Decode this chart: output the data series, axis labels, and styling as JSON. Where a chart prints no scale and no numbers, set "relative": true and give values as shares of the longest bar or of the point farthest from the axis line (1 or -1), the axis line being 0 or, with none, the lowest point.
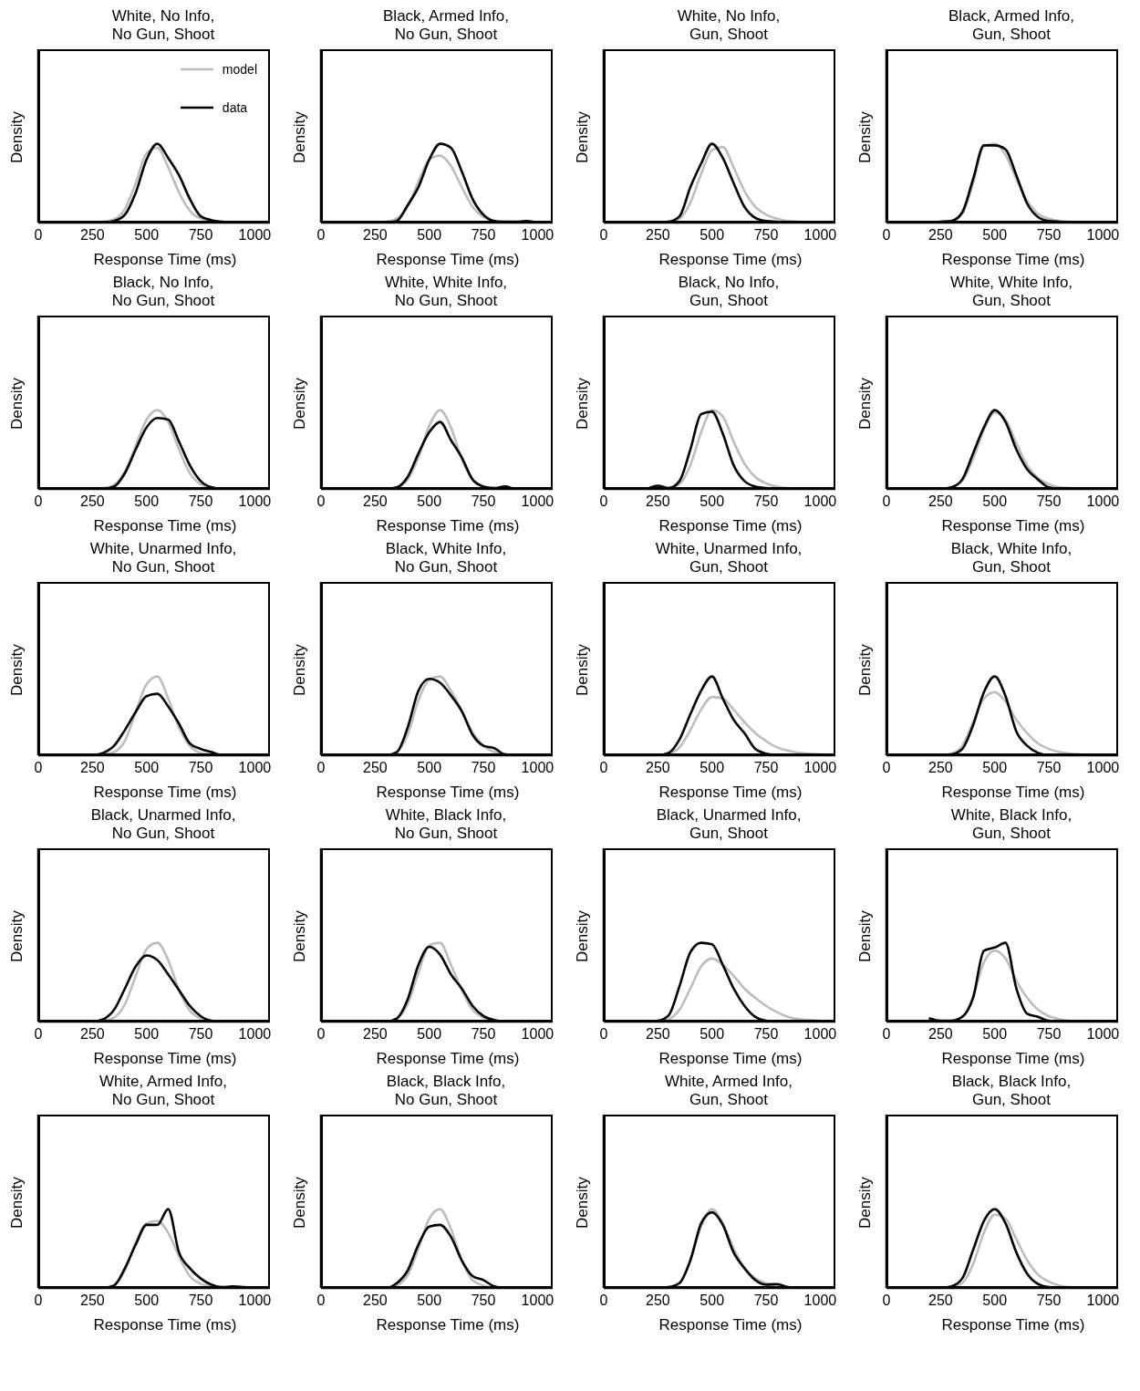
{
  "chart_data": [
    {
      "type": "line",
      "title": "White, No Info,\nNo Gun, Shoot",
      "xlabel": "Response Time (ms)",
      "ylabel": "Density",
      "relative": true,
      "xlim": [
        0,
        1070
      ],
      "xticks": [
        0,
        250,
        500,
        750,
        1000
      ],
      "legend": "top right",
      "x": [
        200,
        250,
        300,
        350,
        400,
        450,
        500,
        550,
        600,
        650,
        700,
        750,
        800,
        850,
        900,
        950,
        1000
      ],
      "series": [
        {
          "name": "model",
          "color": "#bdbdbd",
          "values": [
            0,
            0,
            0.01,
            0.04,
            0.17,
            0.5,
            0.88,
            0.95,
            0.7,
            0.38,
            0.15,
            0.05,
            0.02,
            0.01,
            0,
            0,
            0
          ]
        },
        {
          "name": "data",
          "color": "#000000",
          "values": [
            0,
            0,
            0,
            0.02,
            0.1,
            0.38,
            0.8,
            1,
            0.82,
            0.6,
            0.3,
            0.08,
            0.03,
            0.01,
            0,
            0,
            0
          ]
        }
      ]
    },
    {
      "type": "line",
      "title": "Black, Armed Info,\nNo Gun, Shoot",
      "xlabel": "Response Time (ms)",
      "ylabel": "Density",
      "relative": true,
      "xlim": [
        0,
        1070
      ],
      "xticks": [
        0,
        250,
        500,
        750,
        1000
      ],
      "x": [
        200,
        250,
        300,
        350,
        400,
        450,
        500,
        550,
        600,
        650,
        700,
        750,
        800,
        850,
        900,
        950,
        1000
      ],
      "series": [
        {
          "color": "#bdbdbd",
          "values": [
            0,
            0,
            0.01,
            0.05,
            0.2,
            0.52,
            0.8,
            0.85,
            0.72,
            0.45,
            0.2,
            0.07,
            0.02,
            0.01,
            0,
            0,
            0
          ]
        },
        {
          "color": "#000000",
          "values": [
            0,
            0,
            0,
            0.02,
            0.22,
            0.45,
            0.8,
            1,
            0.95,
            0.65,
            0.3,
            0.1,
            0.02,
            0.01,
            0.01,
            0.02,
            0
          ]
        }
      ]
    },
    {
      "type": "line",
      "title": "White, No Info,\nGun, Shoot",
      "xlabel": "Response Time (ms)",
      "ylabel": "Density",
      "relative": true,
      "xlim": [
        0,
        1070
      ],
      "xticks": [
        0,
        250,
        500,
        750,
        1000
      ],
      "x": [
        200,
        250,
        300,
        350,
        400,
        450,
        500,
        550,
        600,
        650,
        700,
        750,
        800,
        850,
        900,
        950,
        1000
      ],
      "series": [
        {
          "color": "#bdbdbd",
          "values": [
            0,
            0,
            0.01,
            0.05,
            0.25,
            0.62,
            0.92,
            0.96,
            0.7,
            0.4,
            0.2,
            0.1,
            0.05,
            0.02,
            0.01,
            0,
            0
          ]
        },
        {
          "color": "#000000",
          "values": [
            0,
            0,
            0.01,
            0.08,
            0.45,
            0.75,
            1,
            0.82,
            0.5,
            0.2,
            0.06,
            0.02,
            0.01,
            0,
            0,
            0,
            0
          ]
        }
      ]
    },
    {
      "type": "line",
      "title": "Black, Armed Info,\nGun, Shoot",
      "xlabel": "Response Time (ms)",
      "ylabel": "Density",
      "relative": true,
      "xlim": [
        0,
        1070
      ],
      "xticks": [
        0,
        250,
        500,
        750,
        1000
      ],
      "x": [
        200,
        250,
        300,
        350,
        400,
        450,
        500,
        550,
        600,
        650,
        700,
        750,
        800,
        850,
        900,
        950,
        1000
      ],
      "series": [
        {
          "color": "#bdbdbd",
          "values": [
            0,
            0,
            0.02,
            0.11,
            0.5,
            0.97,
            1,
            0.86,
            0.55,
            0.28,
            0.11,
            0.05,
            0.02,
            0.01,
            0,
            0,
            0
          ]
        },
        {
          "color": "#000000",
          "values": [
            0,
            0.01,
            0.02,
            0.13,
            0.55,
            0.98,
            0.98,
            0.93,
            0.6,
            0.24,
            0.07,
            0.02,
            0.01,
            0,
            0,
            0,
            0
          ]
        }
      ]
    },
    {
      "type": "line",
      "title": "Black, No Info,\nNo Gun, Shoot",
      "xlabel": "Response Time (ms)",
      "ylabel": "Density",
      "relative": true,
      "xlim": [
        0,
        1070
      ],
      "xticks": [
        0,
        250,
        500,
        750,
        1000
      ],
      "x": [
        200,
        250,
        300,
        350,
        400,
        450,
        500,
        550,
        600,
        650,
        700,
        750,
        800,
        850,
        900,
        950,
        1000
      ],
      "series": [
        {
          "color": "#bdbdbd",
          "values": [
            0,
            0,
            0.01,
            0.05,
            0.22,
            0.55,
            0.88,
            1,
            0.85,
            0.5,
            0.2,
            0.06,
            0.02,
            0,
            0,
            0,
            0
          ]
        },
        {
          "color": "#000000",
          "values": [
            0,
            0,
            0,
            0.03,
            0.2,
            0.5,
            0.78,
            0.9,
            0.88,
            0.6,
            0.3,
            0.1,
            0.02,
            0,
            0,
            0,
            0
          ]
        }
      ]
    },
    {
      "type": "line",
      "title": "White, White Info,\nNo Gun, Shoot",
      "xlabel": "Response Time (ms)",
      "ylabel": "Density",
      "relative": true,
      "xlim": [
        0,
        1070
      ],
      "xticks": [
        0,
        250,
        500,
        750,
        1000
      ],
      "x": [
        200,
        250,
        300,
        350,
        400,
        450,
        500,
        550,
        600,
        650,
        700,
        750,
        800,
        850,
        900,
        950,
        1000
      ],
      "series": [
        {
          "color": "#bdbdbd",
          "values": [
            0,
            0,
            0,
            0.02,
            0.12,
            0.4,
            0.8,
            1,
            0.78,
            0.38,
            0.12,
            0.03,
            0.01,
            0,
            0,
            0,
            0
          ]
        },
        {
          "color": "#000000",
          "values": [
            0,
            0,
            0,
            0.02,
            0.15,
            0.45,
            0.72,
            0.85,
            0.62,
            0.4,
            0.12,
            0.03,
            0.01,
            0.03,
            0,
            0,
            0
          ]
        }
      ]
    },
    {
      "type": "line",
      "title": "Black, No Info,\nGun, Shoot",
      "xlabel": "Response Time (ms)",
      "ylabel": "Density",
      "relative": true,
      "xlim": [
        0,
        1070
      ],
      "xticks": [
        0,
        250,
        500,
        750,
        1000
      ],
      "x": [
        200,
        250,
        300,
        350,
        400,
        450,
        500,
        550,
        600,
        650,
        700,
        750,
        800,
        850,
        900,
        950,
        1000
      ],
      "series": [
        {
          "color": "#bdbdbd",
          "values": [
            0,
            0,
            0.01,
            0.06,
            0.3,
            0.72,
            1,
            0.92,
            0.6,
            0.32,
            0.15,
            0.07,
            0.03,
            0.01,
            0,
            0,
            0
          ]
        },
        {
          "color": "#000000",
          "values": [
            0,
            0.04,
            0.01,
            0.1,
            0.5,
            0.95,
            0.98,
            0.7,
            0.3,
            0.1,
            0.03,
            0.01,
            0,
            0,
            0,
            0,
            0
          ]
        }
      ]
    },
    {
      "type": "line",
      "title": "White, White Info,\nGun, Shoot",
      "xlabel": "Response Time (ms)",
      "ylabel": "Density",
      "relative": true,
      "xlim": [
        0,
        1070
      ],
      "xticks": [
        0,
        250,
        500,
        750,
        1000
      ],
      "x": [
        200,
        250,
        300,
        350,
        400,
        450,
        500,
        550,
        600,
        650,
        700,
        750,
        800,
        850,
        900,
        950,
        1000
      ],
      "series": [
        {
          "color": "#bdbdbd",
          "values": [
            0,
            0,
            0.02,
            0.1,
            0.38,
            0.75,
            0.97,
            0.88,
            0.58,
            0.3,
            0.14,
            0.06,
            0.02,
            0.01,
            0,
            0,
            0
          ]
        },
        {
          "color": "#000000",
          "values": [
            0,
            0,
            0.02,
            0.12,
            0.45,
            0.78,
            1,
            0.85,
            0.5,
            0.25,
            0.12,
            0.02,
            0,
            0,
            0,
            0,
            0
          ]
        }
      ]
    },
    {
      "type": "line",
      "title": "White, Unarmed Info,\nNo Gun, Shoot",
      "xlabel": "Response Time (ms)",
      "ylabel": "Density",
      "relative": true,
      "xlim": [
        0,
        1070
      ],
      "xticks": [
        0,
        250,
        500,
        750,
        1000
      ],
      "x": [
        200,
        250,
        300,
        350,
        400,
        450,
        500,
        550,
        600,
        650,
        700,
        750,
        800,
        850,
        900,
        950,
        1000
      ],
      "series": [
        {
          "color": "#bdbdbd",
          "values": [
            0,
            0,
            0.01,
            0.04,
            0.18,
            0.55,
            0.9,
            1,
            0.72,
            0.35,
            0.12,
            0.03,
            0.01,
            0,
            0,
            0,
            0
          ]
        },
        {
          "color": "#000000",
          "values": [
            0,
            0,
            0.03,
            0.12,
            0.32,
            0.55,
            0.75,
            0.78,
            0.62,
            0.4,
            0.15,
            0.08,
            0.04,
            0,
            0,
            0,
            0
          ]
        }
      ]
    },
    {
      "type": "line",
      "title": "Black, White Info,\nNo Gun, Shoot",
      "xlabel": "Response Time (ms)",
      "ylabel": "Density",
      "relative": true,
      "xlim": [
        0,
        1070
      ],
      "xticks": [
        0,
        250,
        500,
        750,
        1000
      ],
      "x": [
        200,
        250,
        300,
        350,
        400,
        450,
        500,
        550,
        600,
        650,
        700,
        750,
        800,
        850,
        900,
        950,
        1000
      ],
      "series": [
        {
          "color": "#bdbdbd",
          "values": [
            0,
            0,
            0,
            0.04,
            0.26,
            0.7,
            0.96,
            1,
            0.82,
            0.56,
            0.29,
            0.12,
            0.04,
            0.01,
            0,
            0,
            0
          ]
        },
        {
          "color": "#000000",
          "values": [
            0,
            0,
            0,
            0.04,
            0.35,
            0.82,
            0.97,
            0.92,
            0.76,
            0.56,
            0.26,
            0.12,
            0.09,
            0.01,
            0,
            0,
            0
          ]
        }
      ]
    },
    {
      "type": "line",
      "title": "White, Unarmed Info,\nGun, Shoot",
      "xlabel": "Response Time (ms)",
      "ylabel": "Density",
      "relative": true,
      "xlim": [
        0,
        1070
      ],
      "xticks": [
        0,
        250,
        500,
        750,
        1000
      ],
      "x": [
        200,
        250,
        300,
        350,
        400,
        450,
        500,
        550,
        600,
        650,
        700,
        750,
        800,
        850,
        900,
        950,
        1000
      ],
      "series": [
        {
          "color": "#bdbdbd",
          "values": [
            0,
            0,
            0.02,
            0.1,
            0.32,
            0.58,
            0.74,
            0.72,
            0.58,
            0.42,
            0.28,
            0.18,
            0.1,
            0.06,
            0.03,
            0.02,
            0.01
          ]
        },
        {
          "color": "#000000",
          "values": [
            0,
            0,
            0.03,
            0.2,
            0.52,
            0.82,
            1,
            0.72,
            0.45,
            0.28,
            0.08,
            0.02,
            0,
            0,
            0,
            0,
            0
          ]
        }
      ]
    },
    {
      "type": "line",
      "title": "Black, White Info,\nGun, Shoot",
      "xlabel": "Response Time (ms)",
      "ylabel": "Density",
      "relative": true,
      "xlim": [
        0,
        1070
      ],
      "xticks": [
        0,
        250,
        500,
        750,
        1000
      ],
      "x": [
        200,
        250,
        300,
        350,
        400,
        450,
        500,
        550,
        600,
        650,
        700,
        750,
        800,
        850,
        900,
        950,
        1000
      ],
      "series": [
        {
          "color": "#bdbdbd",
          "values": [
            0,
            0,
            0.02,
            0.12,
            0.42,
            0.72,
            0.8,
            0.68,
            0.45,
            0.28,
            0.15,
            0.08,
            0.04,
            0.02,
            0.01,
            0,
            0
          ]
        },
        {
          "color": "#000000",
          "values": [
            0,
            0,
            0.01,
            0.08,
            0.38,
            0.8,
            1,
            0.75,
            0.3,
            0.12,
            0.03,
            0,
            0,
            0,
            0,
            0,
            0
          ]
        }
      ]
    },
    {
      "type": "line",
      "title": "Black, Unarmed Info,\nNo Gun, Shoot",
      "xlabel": "Response Time (ms)",
      "ylabel": "Density",
      "relative": true,
      "xlim": [
        0,
        1070
      ],
      "xticks": [
        0,
        250,
        500,
        750,
        1000
      ],
      "x": [
        200,
        250,
        300,
        350,
        400,
        450,
        500,
        550,
        600,
        650,
        700,
        750,
        800,
        850,
        900,
        950,
        1000
      ],
      "series": [
        {
          "color": "#bdbdbd",
          "values": [
            0,
            0,
            0.01,
            0.05,
            0.22,
            0.58,
            0.92,
            1,
            0.78,
            0.4,
            0.14,
            0.04,
            0.01,
            0,
            0,
            0,
            0
          ]
        },
        {
          "color": "#000000",
          "values": [
            0,
            0,
            0.03,
            0.15,
            0.42,
            0.7,
            0.84,
            0.78,
            0.6,
            0.4,
            0.2,
            0.07,
            0.01,
            0,
            0,
            0,
            0
          ]
        }
      ]
    },
    {
      "type": "line",
      "title": "White, Black Info,\nNo Gun, Shoot",
      "xlabel": "Response Time (ms)",
      "ylabel": "Density",
      "relative": true,
      "xlim": [
        0,
        1070
      ],
      "xticks": [
        0,
        250,
        500,
        750,
        1000
      ],
      "x": [
        200,
        250,
        300,
        350,
        400,
        450,
        500,
        550,
        600,
        650,
        700,
        750,
        800,
        850,
        900,
        950,
        1000
      ],
      "series": [
        {
          "color": "#bdbdbd",
          "values": [
            0,
            0,
            0,
            0.04,
            0.22,
            0.62,
            0.97,
            1,
            0.72,
            0.4,
            0.15,
            0.05,
            0.01,
            0,
            0,
            0,
            0
          ]
        },
        {
          "color": "#000000",
          "values": [
            0,
            0,
            0,
            0.04,
            0.28,
            0.72,
            0.95,
            0.85,
            0.6,
            0.42,
            0.2,
            0.07,
            0.02,
            0,
            0,
            0,
            0
          ]
        }
      ]
    },
    {
      "type": "line",
      "title": "Black, Unarmed Info,\nGun, Shoot",
      "xlabel": "Response Time (ms)",
      "ylabel": "Density",
      "relative": true,
      "xlim": [
        0,
        1070
      ],
      "xticks": [
        0,
        250,
        500,
        750,
        1000
      ],
      "x": [
        200,
        250,
        300,
        350,
        400,
        450,
        500,
        550,
        600,
        650,
        700,
        750,
        800,
        850,
        900,
        950,
        1000
      ],
      "series": [
        {
          "color": "#bdbdbd",
          "values": [
            0,
            0,
            0.03,
            0.15,
            0.42,
            0.7,
            0.8,
            0.72,
            0.58,
            0.42,
            0.3,
            0.2,
            0.12,
            0.06,
            0.03,
            0.02,
            0.01
          ]
        },
        {
          "color": "#000000",
          "values": [
            0,
            0.01,
            0.08,
            0.45,
            0.88,
            1,
            0.98,
            0.72,
            0.42,
            0.2,
            0.06,
            0.01,
            0,
            0,
            0,
            0,
            0
          ]
        }
      ]
    },
    {
      "type": "line",
      "title": "White, Black Info,\nGun, Shoot",
      "xlabel": "Response Time (ms)",
      "ylabel": "Density",
      "relative": true,
      "xlim": [
        0,
        1070
      ],
      "xticks": [
        0,
        250,
        500,
        750,
        1000
      ],
      "x": [
        200,
        250,
        300,
        350,
        400,
        450,
        500,
        550,
        600,
        650,
        700,
        750,
        800,
        850,
        900,
        950,
        1000
      ],
      "series": [
        {
          "color": "#bdbdbd",
          "values": [
            0,
            0,
            0.01,
            0.06,
            0.32,
            0.75,
            0.9,
            0.8,
            0.52,
            0.3,
            0.15,
            0.07,
            0.03,
            0.01,
            0,
            0,
            0
          ]
        },
        {
          "color": "#000000",
          "values": [
            0.04,
            0.01,
            0.01,
            0.06,
            0.3,
            0.9,
            0.94,
            1,
            0.42,
            0.1,
            0.06,
            0.01,
            0,
            0,
            0,
            0,
            0
          ]
        }
      ]
    },
    {
      "type": "line",
      "title": "White, Armed Info,\nNo Gun, Shoot",
      "xlabel": "Response Time (ms)",
      "ylabel": "Density",
      "relative": true,
      "xlim": [
        0,
        1070
      ],
      "xticks": [
        0,
        250,
        500,
        750,
        1000
      ],
      "x": [
        200,
        250,
        300,
        350,
        400,
        450,
        500,
        550,
        600,
        650,
        700,
        750,
        800,
        850,
        900,
        950,
        1000
      ],
      "series": [
        {
          "color": "#bdbdbd",
          "values": [
            0,
            0,
            0,
            0.04,
            0.22,
            0.58,
            0.82,
            0.85,
            0.7,
            0.4,
            0.15,
            0.05,
            0.02,
            0,
            0,
            0,
            0
          ]
        },
        {
          "color": "#000000",
          "values": [
            0,
            0,
            0,
            0.03,
            0.25,
            0.55,
            0.8,
            0.8,
            1,
            0.45,
            0.25,
            0.12,
            0.04,
            0.01,
            0.02,
            0.01,
            0
          ]
        }
      ]
    },
    {
      "type": "line",
      "title": "Black, Black Info,\nNo Gun, Shoot",
      "xlabel": "Response Time (ms)",
      "ylabel": "Density",
      "relative": true,
      "xlim": [
        0,
        1070
      ],
      "xticks": [
        0,
        250,
        500,
        750,
        1000
      ],
      "x": [
        200,
        250,
        300,
        350,
        400,
        450,
        500,
        550,
        600,
        650,
        700,
        750,
        800,
        850,
        900,
        950,
        1000
      ],
      "series": [
        {
          "color": "#bdbdbd",
          "values": [
            0,
            0,
            0,
            0.03,
            0.16,
            0.5,
            0.88,
            1,
            0.75,
            0.35,
            0.1,
            0.03,
            0,
            0,
            0,
            0,
            0
          ]
        },
        {
          "color": "#000000",
          "values": [
            0,
            0,
            0,
            0.06,
            0.22,
            0.55,
            0.78,
            0.8,
            0.65,
            0.35,
            0.15,
            0.1,
            0.02,
            0,
            0,
            0,
            0
          ]
        }
      ]
    },
    {
      "type": "line",
      "title": "White, Armed Info,\nGun, Shoot",
      "xlabel": "Response Time (ms)",
      "ylabel": "Density",
      "relative": true,
      "xlim": [
        0,
        1070
      ],
      "xticks": [
        0,
        250,
        500,
        750,
        1000
      ],
      "x": [
        200,
        250,
        300,
        350,
        400,
        450,
        500,
        550,
        600,
        650,
        700,
        750,
        800,
        850,
        900,
        950,
        1000
      ],
      "series": [
        {
          "color": "#bdbdbd",
          "values": [
            0,
            0,
            0.01,
            0.07,
            0.35,
            0.78,
            1,
            0.82,
            0.5,
            0.25,
            0.12,
            0.06,
            0.03,
            0.01,
            0,
            0,
            0
          ]
        },
        {
          "color": "#000000",
          "values": [
            0,
            0,
            0.01,
            0.06,
            0.35,
            0.82,
            0.96,
            0.8,
            0.45,
            0.25,
            0.1,
            0.04,
            0.05,
            0.01,
            0,
            0,
            0
          ]
        }
      ]
    },
    {
      "type": "line",
      "title": "Black, Black Info,\nGun, Shoot",
      "xlabel": "Response Time (ms)",
      "ylabel": "Density",
      "relative": true,
      "xlim": [
        0,
        1070
      ],
      "xticks": [
        0,
        250,
        500,
        750,
        1000
      ],
      "x": [
        200,
        250,
        300,
        350,
        400,
        450,
        500,
        550,
        600,
        650,
        700,
        750,
        800,
        850,
        900,
        950,
        1000
      ],
      "series": [
        {
          "color": "#bdbdbd",
          "values": [
            0,
            0,
            0.01,
            0.06,
            0.3,
            0.7,
            0.93,
            0.88,
            0.62,
            0.35,
            0.17,
            0.08,
            0.03,
            0.01,
            0,
            0,
            0
          ]
        },
        {
          "color": "#000000",
          "values": [
            0,
            0,
            0.02,
            0.12,
            0.48,
            0.85,
            1,
            0.82,
            0.45,
            0.18,
            0.05,
            0.01,
            0,
            0,
            0,
            0,
            0
          ]
        }
      ]
    }
  ]
}
